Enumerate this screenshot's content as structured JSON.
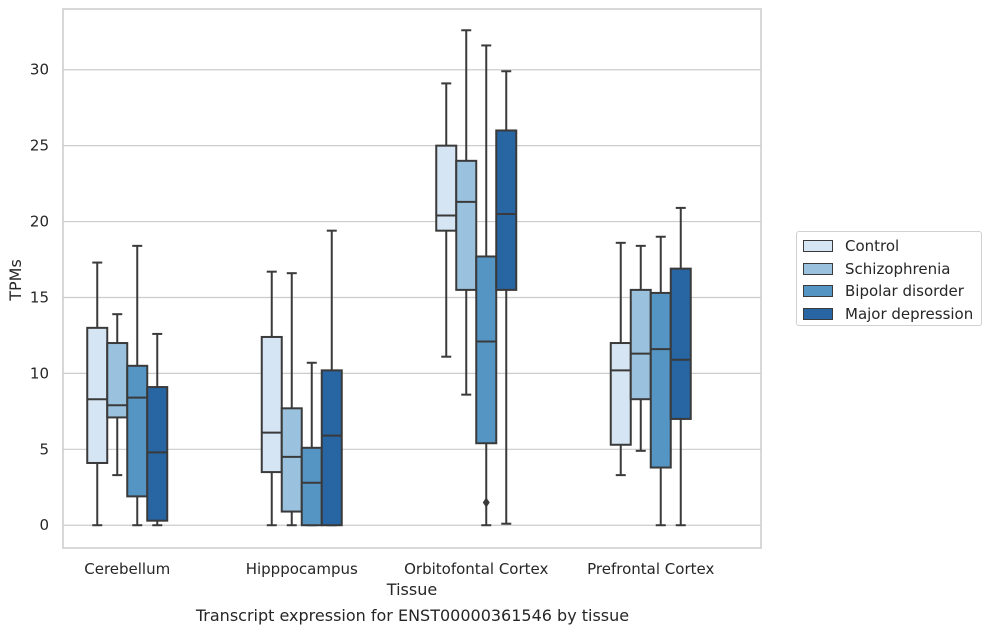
{
  "caption": "Transcript expression for ENST00000361546 by tissue",
  "chart_data": {
    "type": "box",
    "title": "",
    "xlabel": "Tissue",
    "ylabel": "TPMs",
    "ylim": [
      -1.5,
      34
    ],
    "yticks": [
      0,
      5,
      10,
      15,
      20,
      25,
      30
    ],
    "grid": "horizontal",
    "legend_position": "right",
    "categories": [
      "Cerebellum",
      "Hipppocampus",
      "Orbitofontal Cortex",
      "Prefrontal Cortex"
    ],
    "series": [
      {
        "name": "Control",
        "color": "#d6e5f3",
        "boxes": [
          {
            "whisker_low": 0.0,
            "q1": 4.1,
            "median": 8.3,
            "q3": 13.0,
            "whisker_high": 17.3,
            "outliers": []
          },
          {
            "whisker_low": 0.0,
            "q1": 3.5,
            "median": 6.1,
            "q3": 12.4,
            "whisker_high": 16.7,
            "outliers": []
          },
          {
            "whisker_low": 11.1,
            "q1": 19.4,
            "median": 20.4,
            "q3": 25.0,
            "whisker_high": 29.1,
            "outliers": []
          },
          {
            "whisker_low": 3.3,
            "q1": 5.3,
            "median": 10.2,
            "q3": 12.0,
            "whisker_high": 18.6,
            "outliers": []
          }
        ]
      },
      {
        "name": "Schizophrenia",
        "color": "#9ac2de",
        "boxes": [
          {
            "whisker_low": 3.3,
            "q1": 7.1,
            "median": 7.9,
            "q3": 12.0,
            "whisker_high": 13.9,
            "outliers": []
          },
          {
            "whisker_low": 0.0,
            "q1": 0.9,
            "median": 4.5,
            "q3": 7.7,
            "whisker_high": 16.6,
            "outliers": []
          },
          {
            "whisker_low": 8.6,
            "q1": 15.5,
            "median": 21.3,
            "q3": 24.0,
            "whisker_high": 32.6,
            "outliers": []
          },
          {
            "whisker_low": 4.9,
            "q1": 8.3,
            "median": 11.3,
            "q3": 15.5,
            "whisker_high": 18.4,
            "outliers": []
          }
        ]
      },
      {
        "name": "Bipolar disorder",
        "color": "#5495c4",
        "boxes": [
          {
            "whisker_low": 0.0,
            "q1": 1.9,
            "median": 8.4,
            "q3": 10.5,
            "whisker_high": 18.4,
            "outliers": []
          },
          {
            "whisker_low": 0.0,
            "q1": 0.0,
            "median": 2.8,
            "q3": 5.1,
            "whisker_high": 10.7,
            "outliers": []
          },
          {
            "whisker_low": 0.0,
            "q1": 5.4,
            "median": 12.1,
            "q3": 17.7,
            "whisker_high": 31.6,
            "outliers": [
              1.5
            ]
          },
          {
            "whisker_low": 0.0,
            "q1": 3.8,
            "median": 11.6,
            "q3": 15.3,
            "whisker_high": 19.0,
            "outliers": []
          }
        ]
      },
      {
        "name": "Major depression",
        "color": "#2765a3",
        "boxes": [
          {
            "whisker_low": 0.0,
            "q1": 0.3,
            "median": 4.8,
            "q3": 9.1,
            "whisker_high": 12.6,
            "outliers": []
          },
          {
            "whisker_low": 0.0,
            "q1": 0.0,
            "median": 5.9,
            "q3": 10.2,
            "whisker_high": 19.4,
            "outliers": []
          },
          {
            "whisker_low": 0.1,
            "q1": 15.5,
            "median": 20.5,
            "q3": 26.0,
            "whisker_high": 29.9,
            "outliers": []
          },
          {
            "whisker_low": 0.0,
            "q1": 7.0,
            "median": 10.9,
            "q3": 16.9,
            "whisker_high": 20.9,
            "outliers": []
          }
        ]
      }
    ]
  }
}
